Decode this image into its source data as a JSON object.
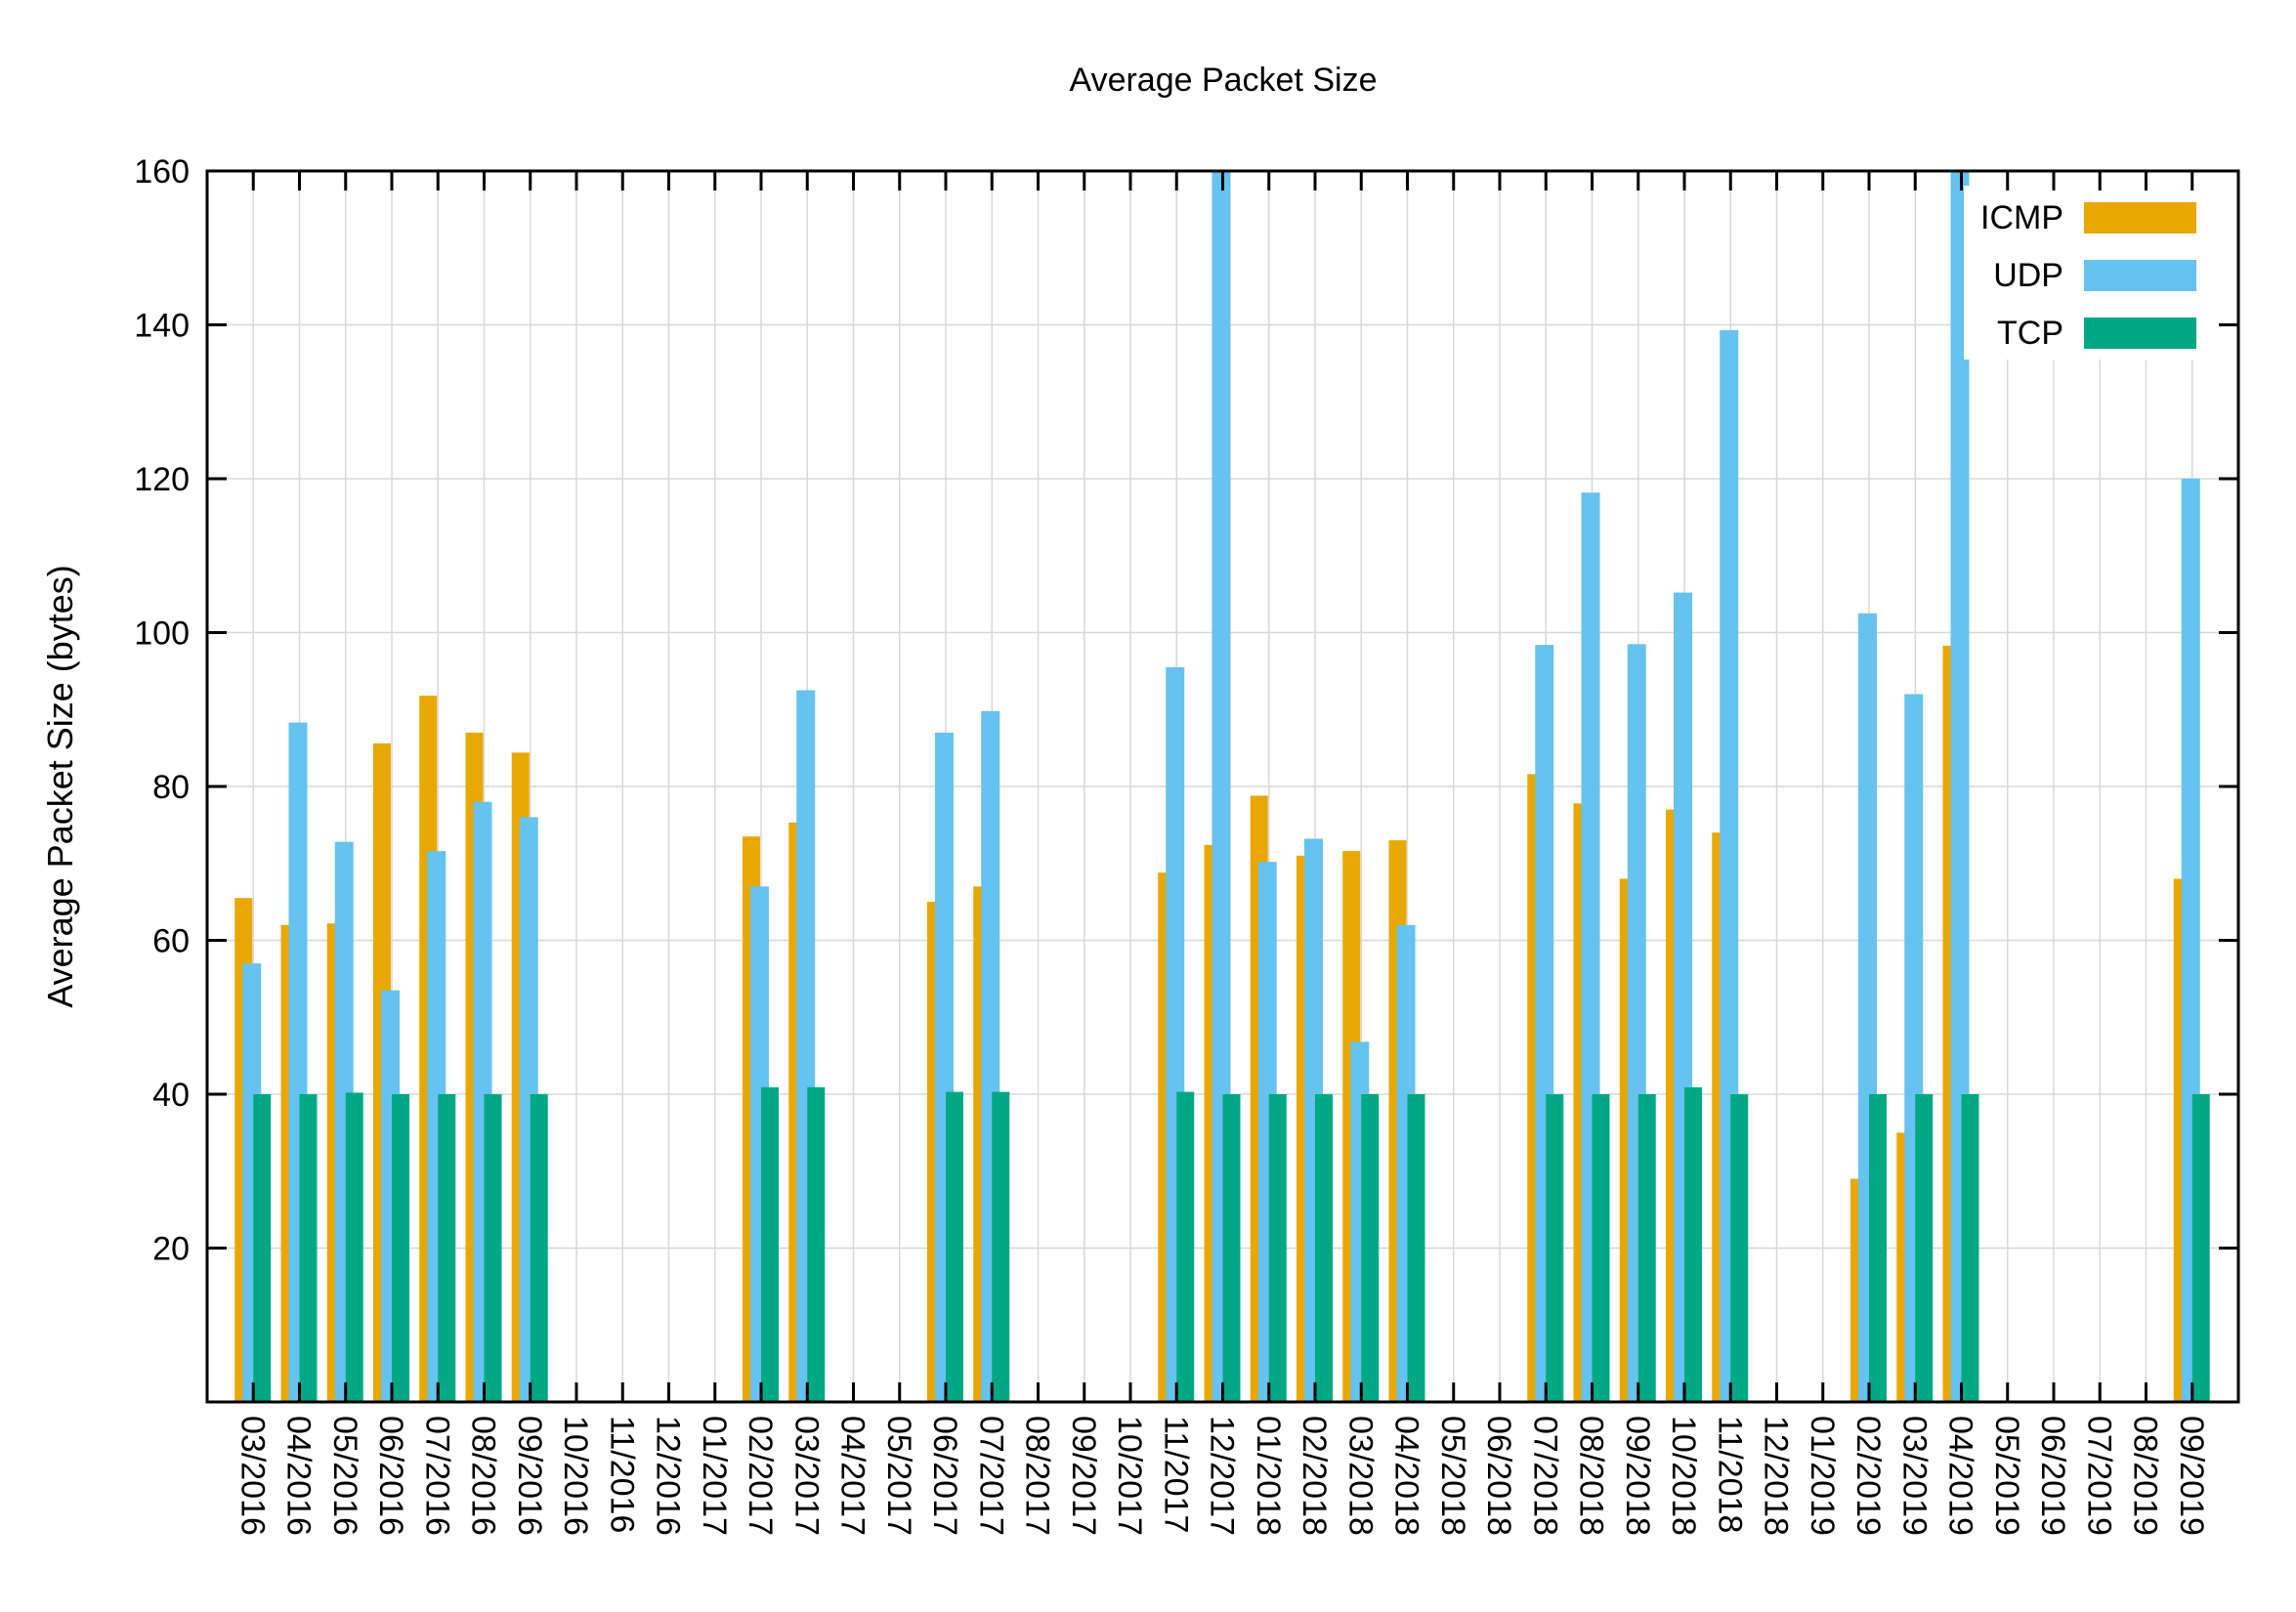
{
  "chart_data": {
    "type": "bar",
    "title": "Average Packet Size",
    "xlabel": "",
    "ylabel": "Average Packet Size (bytes)",
    "ylim": [
      0,
      160
    ],
    "yticks": [
      20,
      40,
      60,
      80,
      100,
      120,
      140,
      160
    ],
    "grid": true,
    "legend_position": "top-right",
    "categories": [
      "03/2016",
      "04/2016",
      "05/2016",
      "06/2016",
      "07/2016",
      "08/2016",
      "09/2016",
      "10/2016",
      "11/2016",
      "12/2016",
      "01/2017",
      "02/2017",
      "03/2017",
      "04/2017",
      "05/2017",
      "06/2017",
      "07/2017",
      "08/2017",
      "09/2017",
      "10/2017",
      "11/2017",
      "12/2017",
      "01/2018",
      "02/2018",
      "03/2018",
      "04/2018",
      "05/2018",
      "06/2018",
      "07/2018",
      "08/2018",
      "09/2018",
      "10/2018",
      "11/2018",
      "12/2018",
      "01/2019",
      "02/2019",
      "03/2019",
      "04/2019",
      "05/2019",
      "06/2019",
      "07/2019",
      "08/2019",
      "09/2019"
    ],
    "series": [
      {
        "name": "ICMP",
        "color": "#E8A800",
        "values": [
          65.5,
          62,
          62.2,
          85.6,
          91.8,
          87,
          84.4,
          null,
          null,
          null,
          null,
          73.5,
          75.3,
          null,
          null,
          65,
          67,
          null,
          null,
          null,
          68.8,
          72.4,
          78.8,
          71,
          71.6,
          73,
          null,
          null,
          81.6,
          77.8,
          68,
          77,
          74,
          null,
          null,
          29,
          35,
          98.3,
          null,
          null,
          null,
          null,
          68
        ]
      },
      {
        "name": "UDP",
        "color": "#66C2EE",
        "values": [
          57,
          88.3,
          72.8,
          53.5,
          71.6,
          78,
          76,
          null,
          null,
          null,
          null,
          67,
          92.5,
          null,
          null,
          87,
          89.8,
          null,
          null,
          null,
          95.5,
          170,
          70.2,
          73.2,
          46.8,
          62,
          null,
          null,
          98.4,
          118.2,
          98.5,
          105.2,
          139.3,
          null,
          null,
          102.5,
          92,
          170,
          null,
          null,
          null,
          null,
          120
        ]
      },
      {
        "name": "TCP",
        "color": "#00A884",
        "values": [
          40,
          40,
          40.2,
          40,
          40,
          40,
          40,
          null,
          null,
          null,
          null,
          40.9,
          40.9,
          null,
          null,
          40.3,
          40.3,
          null,
          null,
          null,
          40.3,
          40,
          40,
          40,
          40,
          40,
          null,
          null,
          40,
          40,
          40,
          40.9,
          40,
          null,
          null,
          40,
          40,
          40,
          null,
          null,
          null,
          null,
          40
        ]
      }
    ]
  }
}
